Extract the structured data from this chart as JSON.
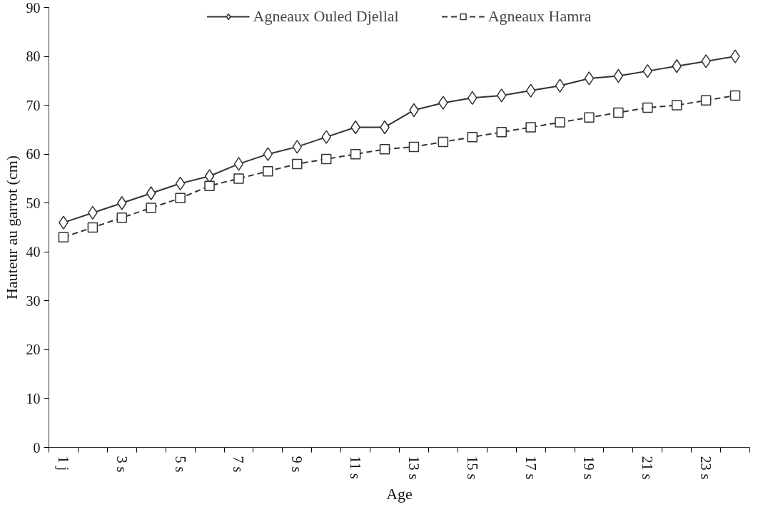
{
  "chart_data": {
    "type": "line",
    "xlabel": "Age",
    "ylabel": "Hauteur au garrot (cm)",
    "categories": [
      "1 j",
      null,
      "3 s",
      null,
      "5 s",
      null,
      "7 s",
      null,
      "9 s",
      null,
      "11 s",
      null,
      "13 s",
      null,
      "15 s",
      null,
      "17 s",
      null,
      "19 s",
      null,
      "21 s",
      null,
      "23 s",
      null
    ],
    "series": [
      {
        "name": "Agneaux Ouled Djellal",
        "color": "#333333",
        "marker": "diamond",
        "line_style": "solid",
        "values": [
          46,
          48,
          50,
          52,
          54,
          55.5,
          58,
          60,
          61.5,
          63.5,
          65.5,
          65.5,
          69,
          70.5,
          71.5,
          72,
          73,
          74,
          75.5,
          76,
          77,
          78,
          79,
          80
        ]
      },
      {
        "name": "Agneaux Hamra",
        "color": "#333333",
        "marker": "square",
        "line_style": "dashed",
        "values": [
          43,
          45,
          47,
          49,
          51,
          53.5,
          55,
          56.5,
          58,
          59,
          60,
          61,
          61.5,
          62.5,
          63.5,
          64.5,
          65.5,
          66.5,
          67.5,
          68.5,
          69.5,
          70,
          71,
          72
        ]
      }
    ],
    "ylim": [
      0,
      90
    ],
    "yticks": [
      0,
      10,
      20,
      30,
      40,
      50,
      60,
      70,
      80,
      90
    ],
    "grid": false,
    "legend": "top"
  }
}
